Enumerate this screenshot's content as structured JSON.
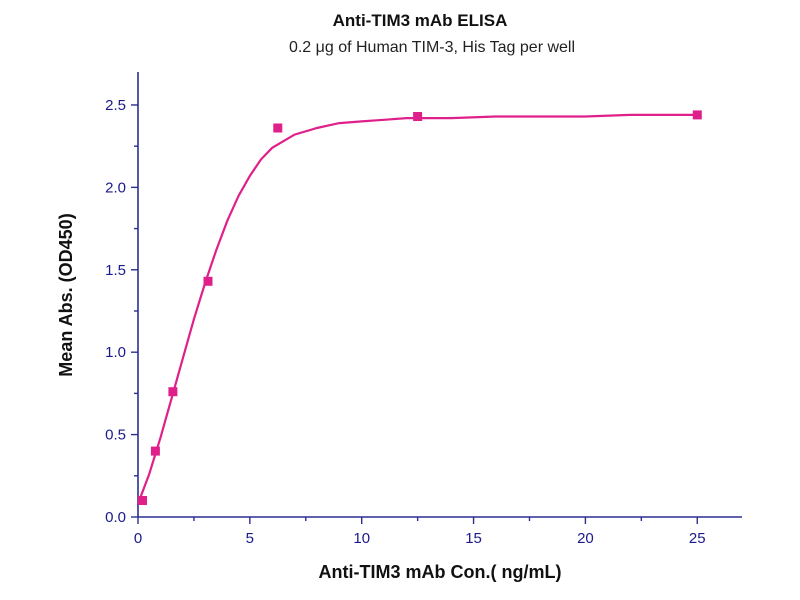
{
  "chart_data": {
    "type": "scatter",
    "title": "Anti-TIM3 mAb ELISA",
    "subtitle": "0.2 μg of Human TIM-3, His Tag per well",
    "xlabel": "Anti-TIM3 mAb Con.( ng/mL)",
    "ylabel": "Mean Abs. (OD450)",
    "xlim": [
      0,
      27
    ],
    "ylim": [
      0,
      2.7
    ],
    "x_ticks": [
      "0",
      "5",
      "10",
      "15",
      "20",
      "25"
    ],
    "y_ticks": [
      "0.0",
      "0.5",
      "1.0",
      "1.5",
      "2.0",
      "2.5"
    ],
    "series": [
      {
        "color": "#e0208a",
        "points": [
          {
            "x": 0.2,
            "y": 0.1
          },
          {
            "x": 0.78,
            "y": 0.4
          },
          {
            "x": 1.56,
            "y": 0.76
          },
          {
            "x": 3.13,
            "y": 1.43
          },
          {
            "x": 6.25,
            "y": 2.36
          },
          {
            "x": 12.5,
            "y": 2.43
          },
          {
            "x": 25.0,
            "y": 2.44
          }
        ],
        "fit_curve": {
          "x": [
            0,
            0.5,
            1,
            1.5,
            2,
            2.5,
            3,
            3.5,
            4,
            4.5,
            5,
            5.5,
            6,
            7,
            8,
            9,
            10,
            11,
            12,
            14,
            16,
            18,
            20,
            22,
            25
          ],
          "y": [
            0.08,
            0.26,
            0.48,
            0.72,
            0.96,
            1.2,
            1.42,
            1.62,
            1.8,
            1.95,
            2.07,
            2.17,
            2.24,
            2.32,
            2.36,
            2.39,
            2.4,
            2.41,
            2.42,
            2.42,
            2.43,
            2.43,
            2.43,
            2.44,
            2.44
          ]
        }
      }
    ],
    "grid": false,
    "legend": "none"
  }
}
